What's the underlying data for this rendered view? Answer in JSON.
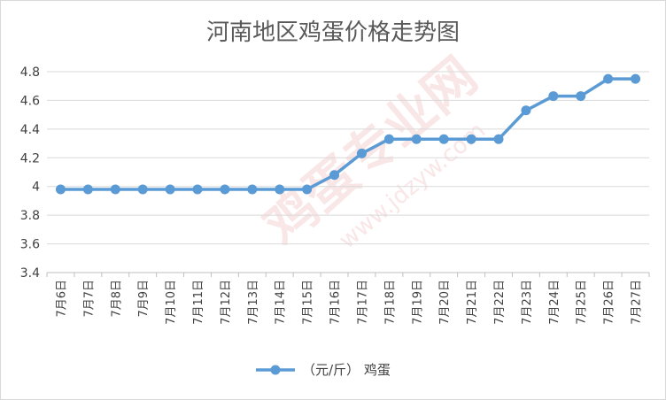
{
  "chart_data": {
    "type": "line",
    "title": "河南地区鸡蛋价格走势图",
    "xlabel": "",
    "ylabel": "",
    "categories": [
      "7月6日",
      "7月7日",
      "7月8日",
      "7月9日",
      "7月10日",
      "7月11日",
      "7月12日",
      "7月13日",
      "7月14日",
      "7月15日",
      "7月16日",
      "7月17日",
      "7月18日",
      "7月19日",
      "7月20日",
      "7月21日",
      "7月22日",
      "7月23日",
      "7月24日",
      "7月25日",
      "7月26日",
      "7月27日"
    ],
    "series": [
      {
        "name": "（元/斤） 鸡蛋",
        "values": [
          3.98,
          3.98,
          3.98,
          3.98,
          3.98,
          3.98,
          3.98,
          3.98,
          3.98,
          3.98,
          4.08,
          4.23,
          4.33,
          4.33,
          4.33,
          4.33,
          4.33,
          4.53,
          4.63,
          4.63,
          4.75,
          4.75
        ]
      }
    ],
    "ylim": [
      3.4,
      4.8
    ],
    "yticks": [
      "3.4",
      "3.6",
      "3.8",
      "4",
      "4.2",
      "4.4",
      "4.6",
      "4.8"
    ],
    "grid": true,
    "legend_position": "bottom",
    "colors": {
      "series": "#5b9bd5",
      "grid": "#d9d9d9",
      "text": "#404040"
    }
  },
  "watermark": {
    "text": "鸡蛋专业网",
    "url": "www.jdzyw.com"
  }
}
